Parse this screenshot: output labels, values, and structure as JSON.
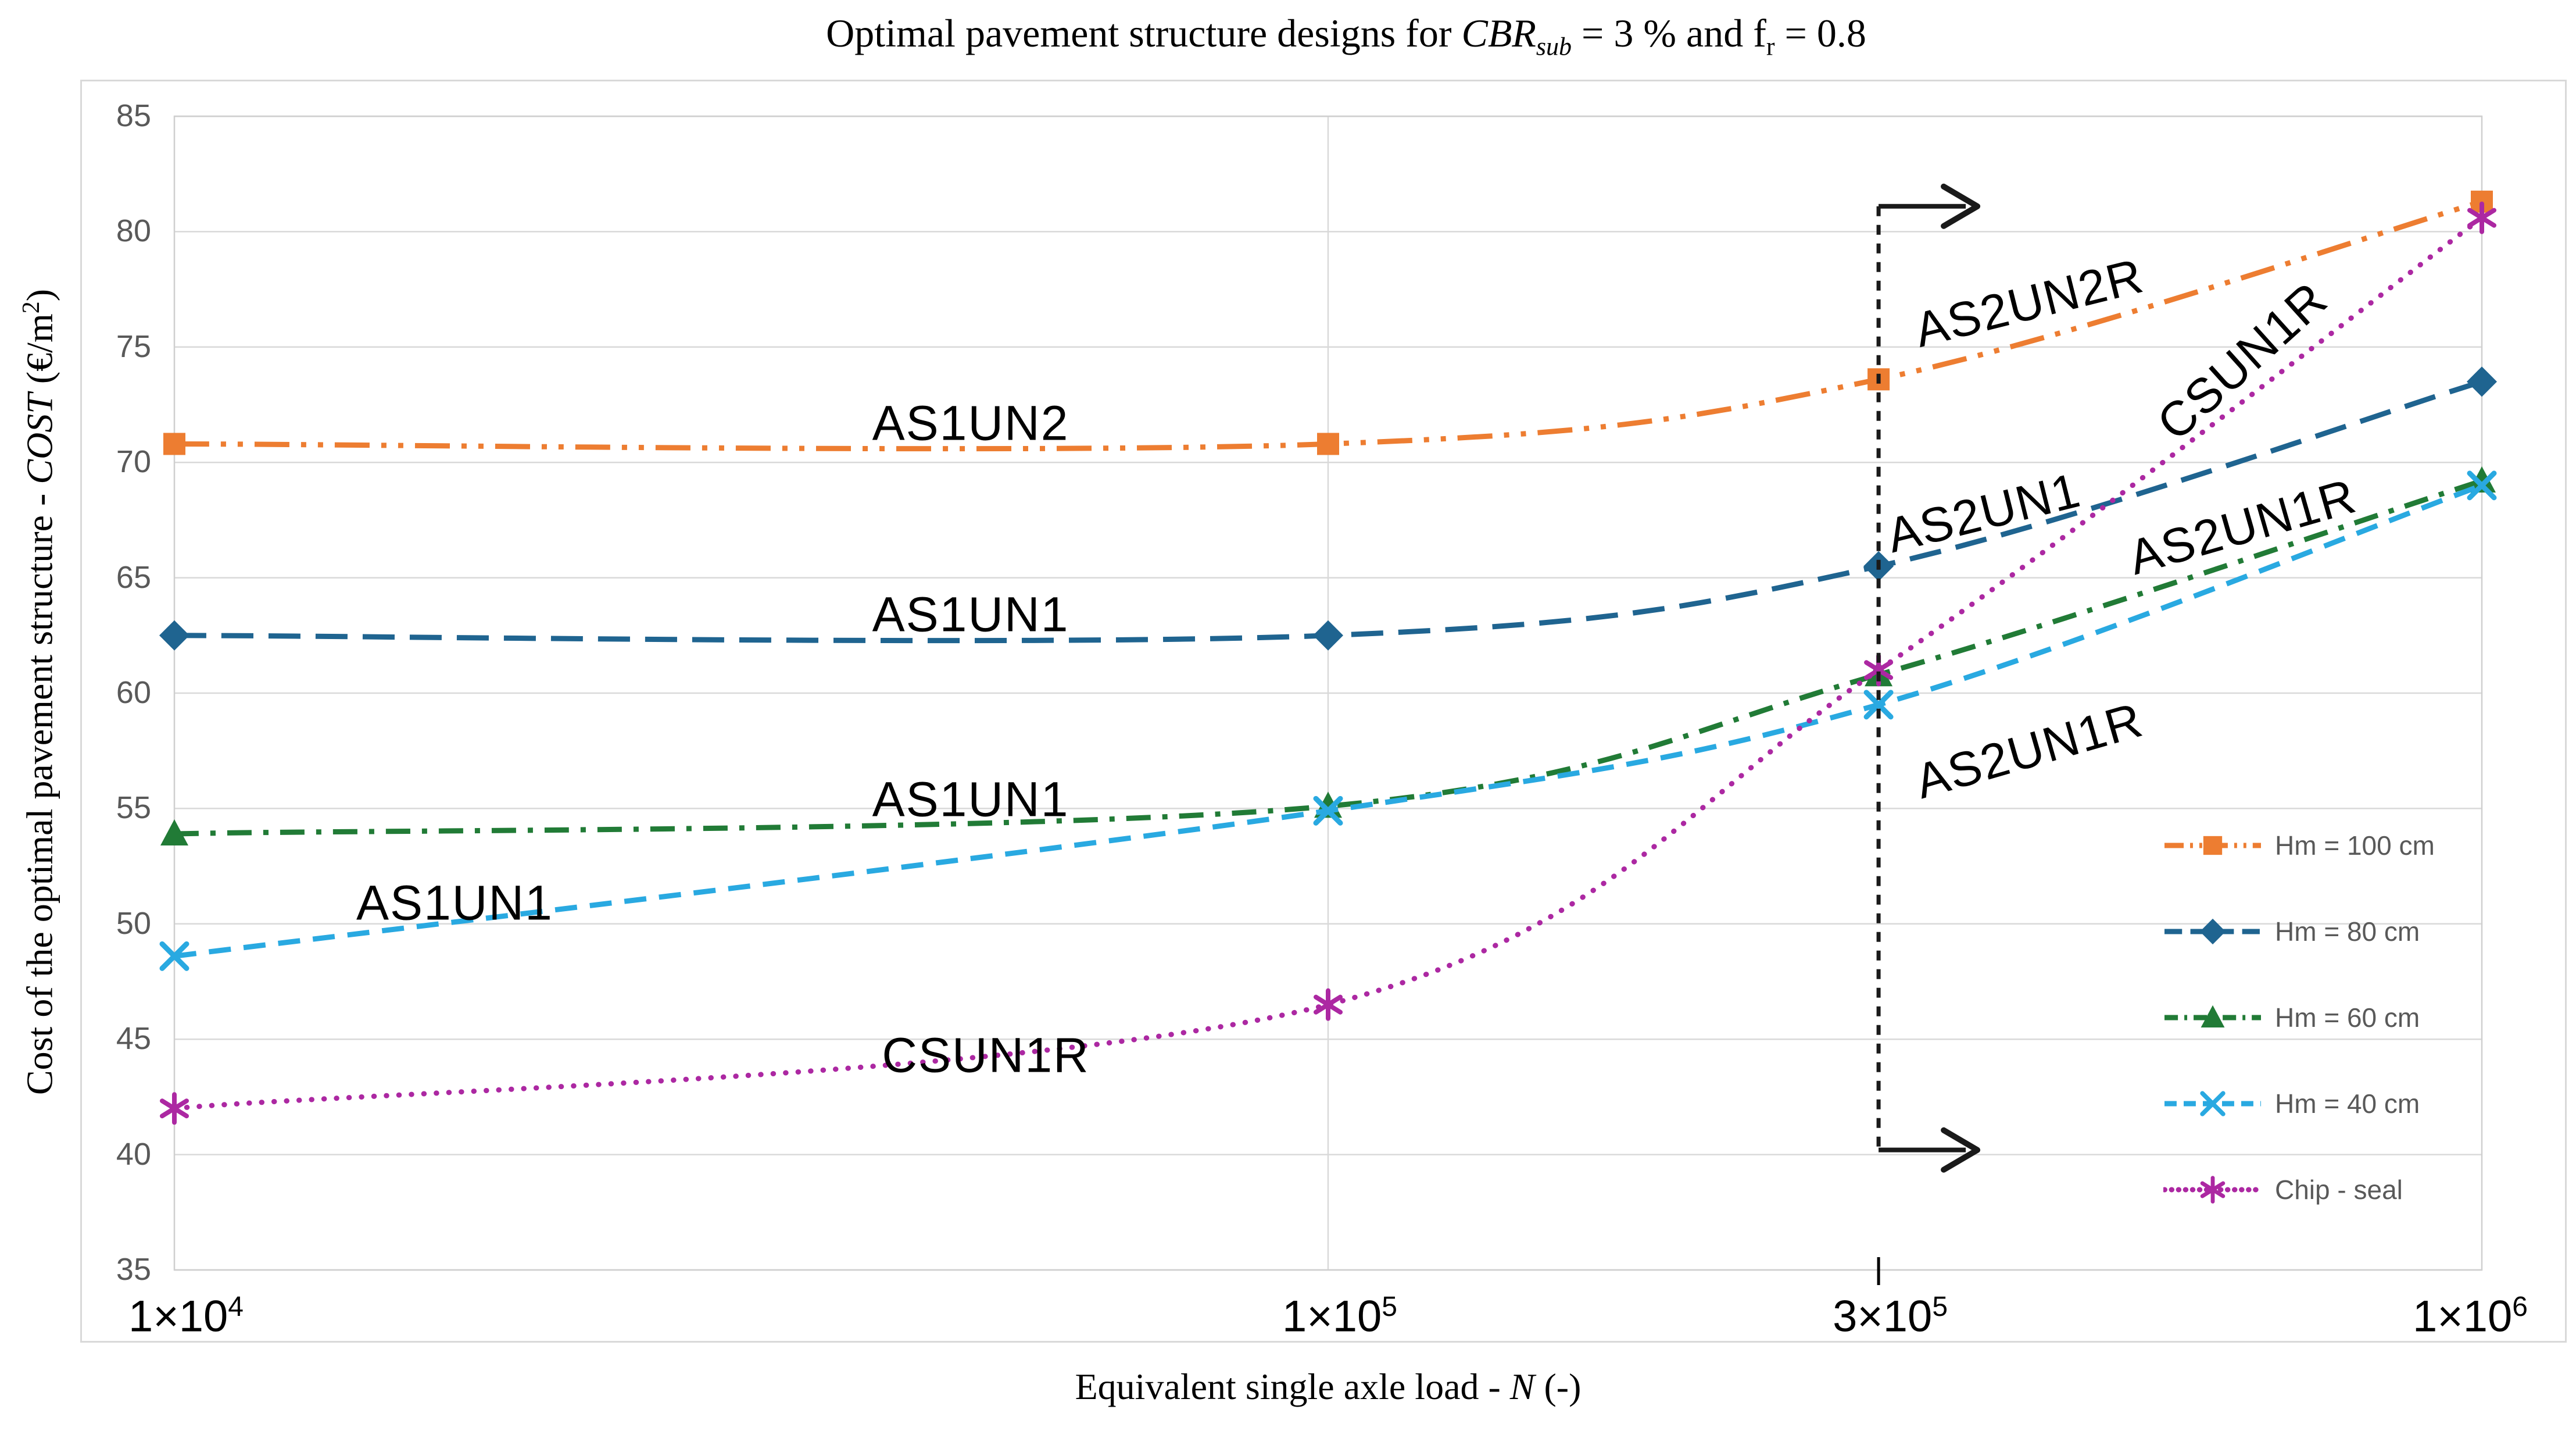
{
  "title": {
    "prefix": "Optimal pavement structure designs for ",
    "cbr": "CBR",
    "cbr_sub": "sub",
    "mid": " = 3 % and f",
    "f_sub": "r",
    "suffix": " = 0.8"
  },
  "axis_titles": {
    "y_prefix": "Cost of the optimal pavement structure - ",
    "y_cost": "COST",
    "y_unit_open": " (€/m",
    "y_unit_sup": "2",
    "y_unit_close": ")",
    "x_prefix": "Equivalent single axle load - ",
    "x_n": "N",
    "x_suffix": " (-)"
  },
  "chart_data": {
    "type": "line",
    "x_scale": "log",
    "xlim": [
      10000,
      1000000
    ],
    "ylim": [
      35,
      85
    ],
    "grid": "horizontal-major",
    "x_ticks": [
      {
        "value": 10000,
        "mantissa": "1×10",
        "exponent": "4"
      },
      {
        "value": 100000,
        "mantissa": "1×10",
        "exponent": "5"
      },
      {
        "value": 300000,
        "mantissa": "3×10",
        "exponent": "5"
      },
      {
        "value": 1000000,
        "mantissa": "1×10",
        "exponent": "6"
      }
    ],
    "y_ticks": [
      35,
      40,
      45,
      50,
      55,
      60,
      65,
      70,
      75,
      80,
      85
    ],
    "x_gridlines_at": [
      100000
    ],
    "x_axis_tickmark_at": 300000,
    "series": [
      {
        "name": "Hm = 100 cm",
        "color": "#ED7D31",
        "dash": "dashdotdot",
        "marker": "square",
        "x": [
          10000,
          100000,
          300000,
          1000000
        ],
        "values": [
          70.8,
          70.8,
          73.6,
          81.3
        ]
      },
      {
        "name": "Hm = 80 cm",
        "color": "#1F6490",
        "dash": "longdash",
        "marker": "diamond",
        "x": [
          10000,
          100000,
          300000,
          1000000
        ],
        "values": [
          62.5,
          62.5,
          65.5,
          73.5
        ]
      },
      {
        "name": "Hm = 60 cm",
        "color": "#217B36",
        "dash": "dashdot",
        "marker": "triangle",
        "x": [
          10000,
          100000,
          300000,
          1000000
        ],
        "values": [
          53.9,
          55.1,
          60.8,
          69.2
        ]
      },
      {
        "name": "Hm = 40 cm",
        "color": "#29A9E1",
        "dash": "dash",
        "marker": "xmark",
        "x": [
          10000,
          100000,
          300000,
          1000000
        ],
        "values": [
          48.6,
          54.9,
          59.5,
          69.0
        ]
      },
      {
        "name": "Chip - seal",
        "color": "#AC28A2",
        "dash": "dot",
        "marker": "asterisk",
        "x": [
          10000,
          100000,
          300000,
          1000000
        ],
        "values": [
          42.0,
          46.5,
          61.0,
          80.6
        ]
      }
    ],
    "annotations": [
      {
        "text": "AS1UN2",
        "x": 49000,
        "y": 71.7,
        "rotation": 0
      },
      {
        "text": "AS1UN1",
        "x": 49000,
        "y": 63.4,
        "rotation": 0
      },
      {
        "text": "AS1UN1",
        "x": 49000,
        "y": 55.4,
        "rotation": 0
      },
      {
        "text": "AS1UN1",
        "x": 17500,
        "y": 50.9,
        "rotation": 0
      },
      {
        "text": "CSUN1R",
        "x": 50500,
        "y": 44.3,
        "rotation": 0
      },
      {
        "text": "AS2UN2R",
        "x": 405000,
        "y": 76.9,
        "rotation": -14
      },
      {
        "text": "AS2UN1",
        "x": 370000,
        "y": 67.8,
        "rotation": -14
      },
      {
        "text": "CSUN1R",
        "x": 620000,
        "y": 74.4,
        "rotation": -42
      },
      {
        "text": "AS2UN1R",
        "x": 620000,
        "y": 67.2,
        "rotation": -16
      },
      {
        "text": "AS2UN1R",
        "x": 405000,
        "y": 57.5,
        "rotation": -16
      }
    ],
    "reference_line": {
      "x": 300000,
      "y_from": 40.2,
      "y_to": 81.1,
      "style": "black-dashed",
      "arrows": "right-at-both-ends"
    },
    "legend": {
      "position": "inside-right-bottom",
      "entries": [
        "Hm = 100 cm",
        "Hm = 80 cm",
        "Hm = 60 cm",
        "Hm = 40 cm",
        "Chip - seal"
      ]
    }
  },
  "colors": {
    "grid": "#D9D9D9",
    "plot_border": "#CFCFCF",
    "panel_border": "#D9D9D9",
    "y_tick_text": "#595959",
    "x_tick_text": "#000000",
    "legend_text": "#595959",
    "reference_line": "#1a1a1a"
  }
}
